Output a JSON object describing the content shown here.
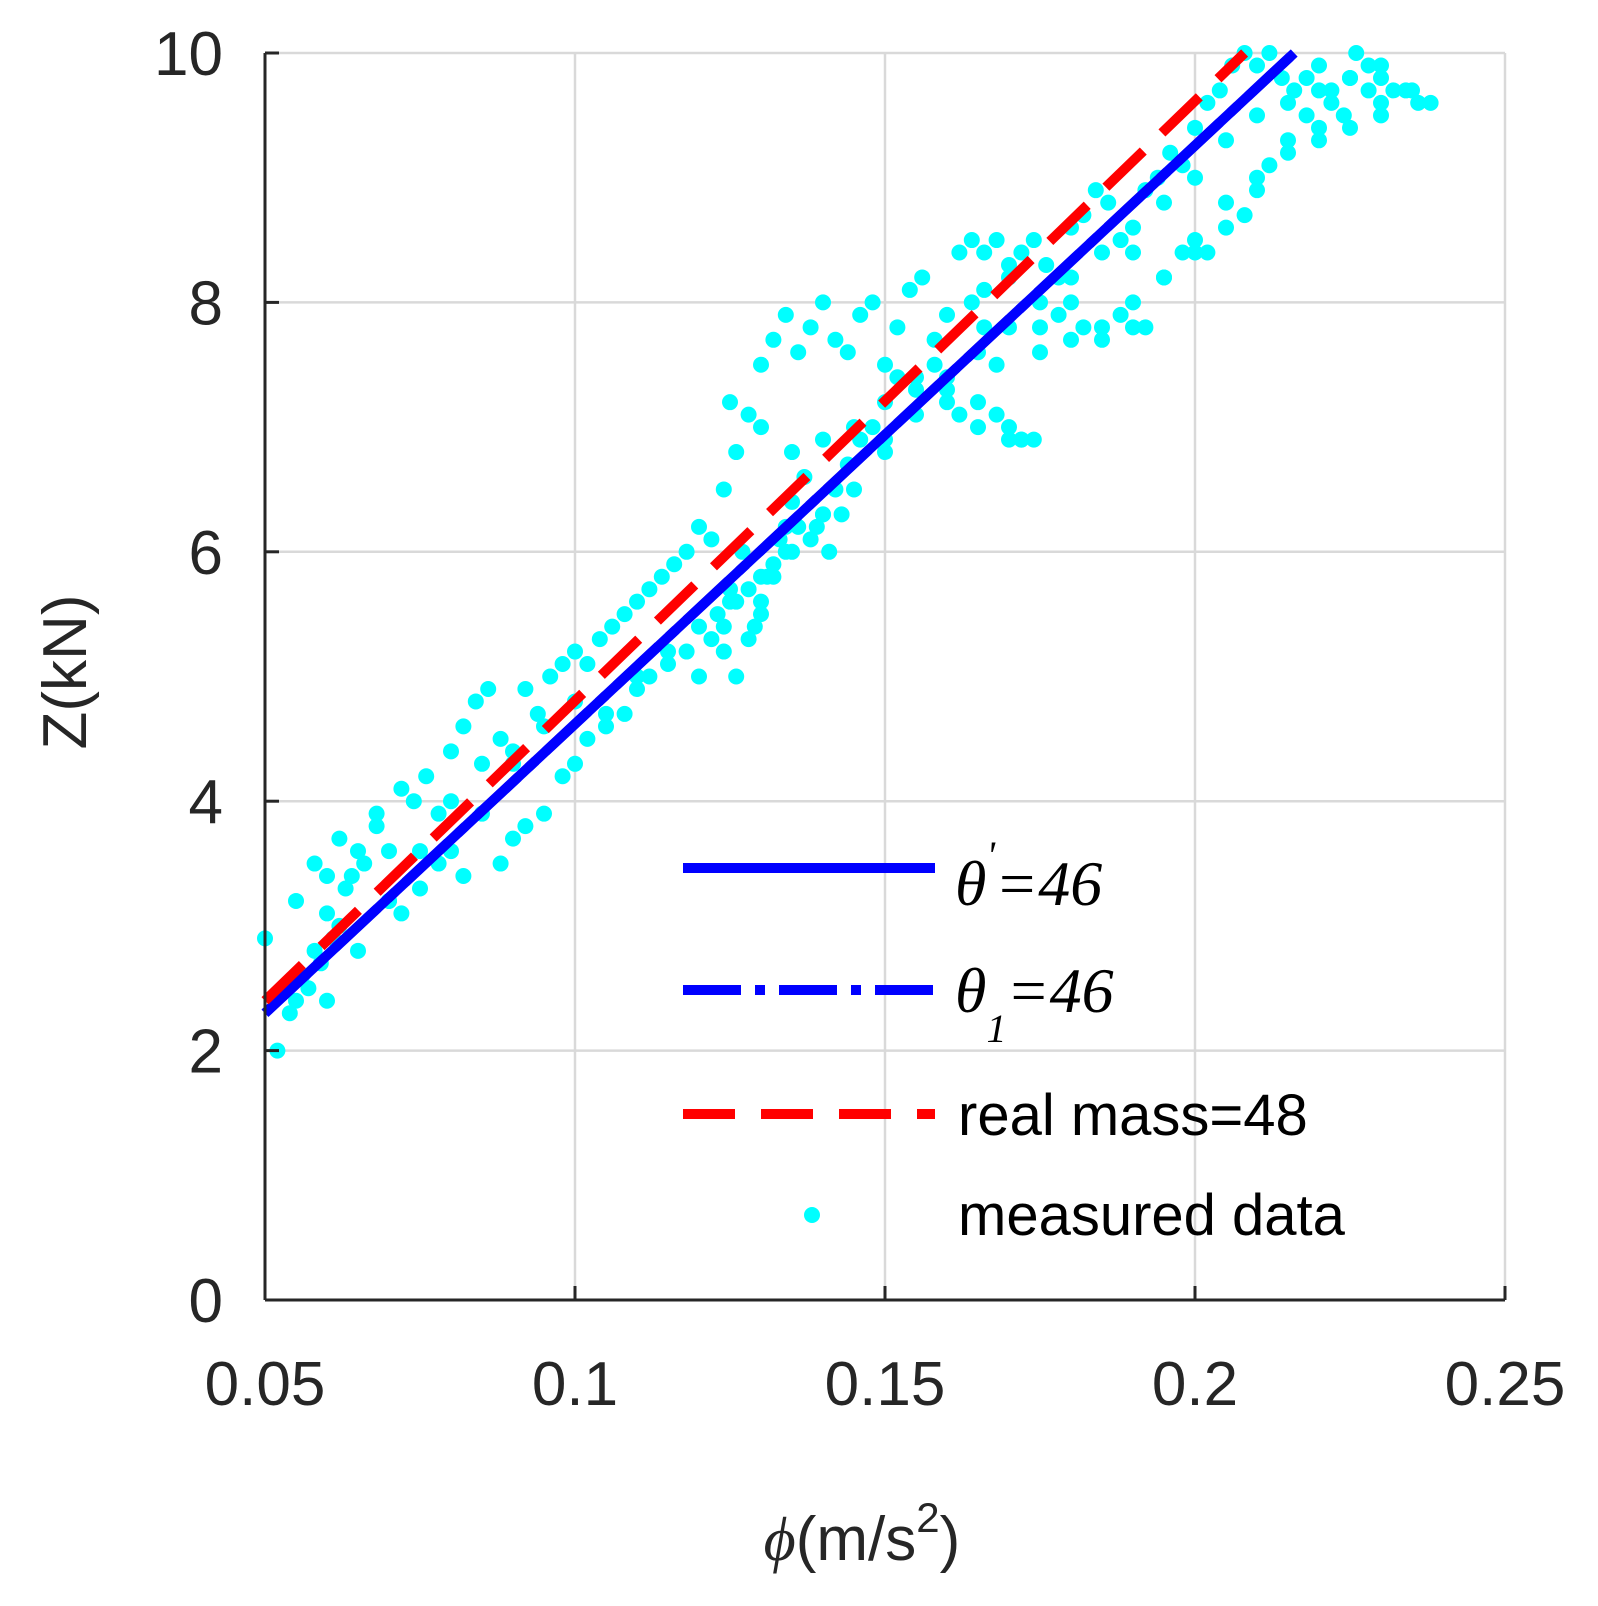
{
  "chart_data": {
    "type": "scatter",
    "title": "",
    "xlabel": {
      "symbol": "ϕ",
      "text": "(m/s",
      "superscript": "2",
      "close": ")"
    },
    "ylabel": "Z(kN)",
    "xlim": [
      0.05,
      0.25
    ],
    "ylim": [
      0,
      10
    ],
    "xticks": [
      0.05,
      0.1,
      0.15,
      0.2,
      0.25
    ],
    "xtick_labels": [
      "0.05",
      "0.1",
      "0.15",
      "0.2",
      "0.25"
    ],
    "yticks": [
      0,
      2,
      4,
      6,
      8,
      10
    ],
    "ytick_labels": [
      "0",
      "2",
      "4",
      "6",
      "8",
      "10"
    ],
    "grid": true,
    "legend_position": "bottom-right",
    "colors": {
      "theta_prime": "#0000ff",
      "theta_1": "#0000ff",
      "real_mass": "#ff0000",
      "measured": "#00ffff",
      "axis": "#262626",
      "grid": "#d9d9d9"
    },
    "series": [
      {
        "key": "theta_prime",
        "style": "solid",
        "legend_symbol": "θ",
        "legend_sup": "'",
        "legend_rest": "=46",
        "x": [
          0.05,
          0.216
        ],
        "y": [
          2.3,
          10.0
        ]
      },
      {
        "key": "theta_1",
        "style": "dashdot",
        "legend_symbol": "θ",
        "legend_sub": "1",
        "legend_rest": "=46",
        "x": [
          0.05,
          0.216
        ],
        "y": [
          2.3,
          10.0
        ]
      },
      {
        "key": "real_mass",
        "style": "dashed",
        "legend_label": "real mass=48",
        "x": [
          0.05,
          0.208
        ],
        "y": [
          2.4,
          10.0
        ]
      },
      {
        "key": "measured",
        "style": "dots",
        "legend_label": "measured data",
        "x": [
          0.05,
          0.052,
          0.054,
          0.055,
          0.056,
          0.057,
          0.058,
          0.059,
          0.06,
          0.061,
          0.062,
          0.063,
          0.064,
          0.066,
          0.068,
          0.07,
          0.072,
          0.074,
          0.076,
          0.078,
          0.08,
          0.082,
          0.084,
          0.086,
          0.088,
          0.09,
          0.092,
          0.094,
          0.096,
          0.098,
          0.1,
          0.102,
          0.104,
          0.106,
          0.108,
          0.11,
          0.112,
          0.114,
          0.116,
          0.118,
          0.12,
          0.122,
          0.124,
          0.126,
          0.128,
          0.13,
          0.132,
          0.134,
          0.136,
          0.138,
          0.14,
          0.142,
          0.144,
          0.146,
          0.148,
          0.15,
          0.152,
          0.154,
          0.156,
          0.158,
          0.16,
          0.162,
          0.164,
          0.166,
          0.168,
          0.17,
          0.172,
          0.174,
          0.176,
          0.178,
          0.18,
          0.182,
          0.184,
          0.186,
          0.188,
          0.19,
          0.192,
          0.194,
          0.196,
          0.198,
          0.2,
          0.202,
          0.204,
          0.206,
          0.208,
          0.21,
          0.212,
          0.214,
          0.216,
          0.218,
          0.22,
          0.222,
          0.224,
          0.226,
          0.228,
          0.23,
          0.232,
          0.234,
          0.236,
          0.238,
          0.055,
          0.058,
          0.06,
          0.062,
          0.065,
          0.068,
          0.07,
          0.072,
          0.075,
          0.078,
          0.08,
          0.082,
          0.085,
          0.088,
          0.09,
          0.092,
          0.095,
          0.098,
          0.1,
          0.102,
          0.105,
          0.108,
          0.11,
          0.112,
          0.115,
          0.118,
          0.12,
          0.122,
          0.124,
          0.126,
          0.128,
          0.13,
          0.132,
          0.134,
          0.136,
          0.138,
          0.14,
          0.142,
          0.144,
          0.146,
          0.148,
          0.15,
          0.152,
          0.155,
          0.158,
          0.16,
          0.162,
          0.165,
          0.168,
          0.17,
          0.172,
          0.175,
          0.178,
          0.18,
          0.182,
          0.185,
          0.188,
          0.19,
          0.192,
          0.195,
          0.198,
          0.2,
          0.202,
          0.205,
          0.208,
          0.21,
          0.212,
          0.215,
          0.218,
          0.22,
          0.222,
          0.225,
          0.228,
          0.23,
          0.06,
          0.065,
          0.07,
          0.075,
          0.08,
          0.085,
          0.09,
          0.095,
          0.1,
          0.105,
          0.11,
          0.115,
          0.12,
          0.125,
          0.13,
          0.135,
          0.14,
          0.145,
          0.15,
          0.155,
          0.16,
          0.165,
          0.17,
          0.175,
          0.18,
          0.185,
          0.19,
          0.195,
          0.2,
          0.205,
          0.21,
          0.215,
          0.22,
          0.225,
          0.23,
          0.235,
          0.124,
          0.126,
          0.128,
          0.13,
          0.132,
          0.134,
          0.123,
          0.125,
          0.127,
          0.129,
          0.131,
          0.133,
          0.135,
          0.137,
          0.139,
          0.141,
          0.143,
          0.125,
          0.13,
          0.135,
          0.14,
          0.145,
          0.15,
          0.155,
          0.16,
          0.165,
          0.17,
          0.172,
          0.174,
          0.168,
          0.166,
          0.164,
          0.166,
          0.17,
          0.175,
          0.18,
          0.185,
          0.19,
          0.195,
          0.2,
          0.205,
          0.21,
          0.215,
          0.22,
          0.225,
          0.23
        ],
        "y": [
          2.9,
          2.0,
          2.3,
          2.4,
          2.6,
          2.5,
          2.8,
          2.7,
          3.1,
          2.9,
          3.0,
          3.3,
          3.4,
          3.5,
          3.8,
          3.6,
          4.1,
          4.0,
          4.2,
          3.9,
          4.4,
          4.6,
          4.8,
          4.9,
          4.5,
          4.3,
          4.9,
          4.7,
          5.0,
          5.1,
          5.2,
          5.1,
          5.3,
          5.4,
          5.5,
          5.6,
          5.7,
          5.8,
          5.9,
          6.0,
          6.2,
          6.1,
          6.5,
          6.8,
          7.1,
          7.5,
          7.7,
          7.9,
          7.6,
          7.8,
          8.0,
          7.7,
          7.6,
          7.9,
          8.0,
          7.5,
          7.8,
          8.1,
          8.2,
          7.7,
          7.9,
          8.4,
          8.5,
          8.4,
          8.5,
          8.3,
          8.4,
          8.5,
          8.3,
          8.2,
          8.6,
          8.7,
          8.9,
          8.8,
          8.5,
          8.4,
          8.9,
          9.0,
          9.2,
          9.1,
          9.4,
          9.6,
          9.7,
          9.9,
          10.0,
          9.9,
          10.0,
          9.8,
          9.7,
          9.8,
          9.9,
          9.7,
          9.5,
          10.0,
          9.9,
          9.8,
          9.7,
          9.7,
          9.6,
          9.6,
          3.2,
          3.5,
          3.4,
          3.7,
          3.6,
          3.9,
          3.2,
          3.1,
          3.3,
          3.5,
          3.6,
          3.4,
          3.9,
          3.5,
          3.7,
          3.8,
          3.9,
          4.2,
          4.3,
          4.5,
          4.6,
          4.7,
          4.9,
          5.0,
          5.1,
          5.2,
          5.0,
          5.3,
          5.4,
          5.6,
          5.7,
          5.5,
          5.8,
          6.0,
          6.2,
          6.1,
          6.3,
          6.5,
          6.7,
          6.9,
          7.0,
          7.2,
          7.4,
          7.3,
          7.5,
          7.2,
          7.1,
          7.0,
          7.1,
          6.9,
          6.9,
          7.8,
          7.9,
          8.0,
          7.8,
          7.7,
          7.9,
          7.8,
          7.8,
          8.2,
          8.4,
          8.5,
          8.4,
          8.6,
          8.7,
          8.9,
          9.1,
          9.3,
          9.5,
          9.4,
          9.6,
          9.8,
          9.7,
          9.6,
          2.4,
          2.8,
          3.2,
          3.6,
          4.0,
          4.3,
          4.4,
          4.6,
          4.8,
          4.7,
          5.0,
          5.2,
          5.4,
          5.6,
          5.8,
          6.0,
          6.3,
          6.5,
          6.8,
          7.1,
          7.4,
          7.6,
          7.8,
          8.0,
          8.2,
          8.4,
          8.6,
          8.8,
          9.0,
          9.3,
          9.5,
          9.6,
          9.7,
          9.8,
          9.9,
          9.7,
          5.2,
          5.0,
          5.3,
          5.6,
          5.9,
          6.2,
          5.5,
          5.7,
          6.0,
          5.4,
          5.8,
          6.1,
          6.4,
          6.6,
          6.2,
          6.0,
          6.3,
          7.2,
          7.0,
          6.8,
          6.9,
          7.0,
          6.9,
          7.4,
          7.3,
          7.2,
          7.0,
          6.9,
          6.9,
          7.5,
          7.8,
          8.0,
          8.1,
          8.2,
          7.6,
          7.7,
          7.8,
          8.0,
          8.2,
          8.4,
          8.8,
          9.0,
          9.2,
          9.3,
          9.4,
          9.5
        ]
      }
    ]
  }
}
